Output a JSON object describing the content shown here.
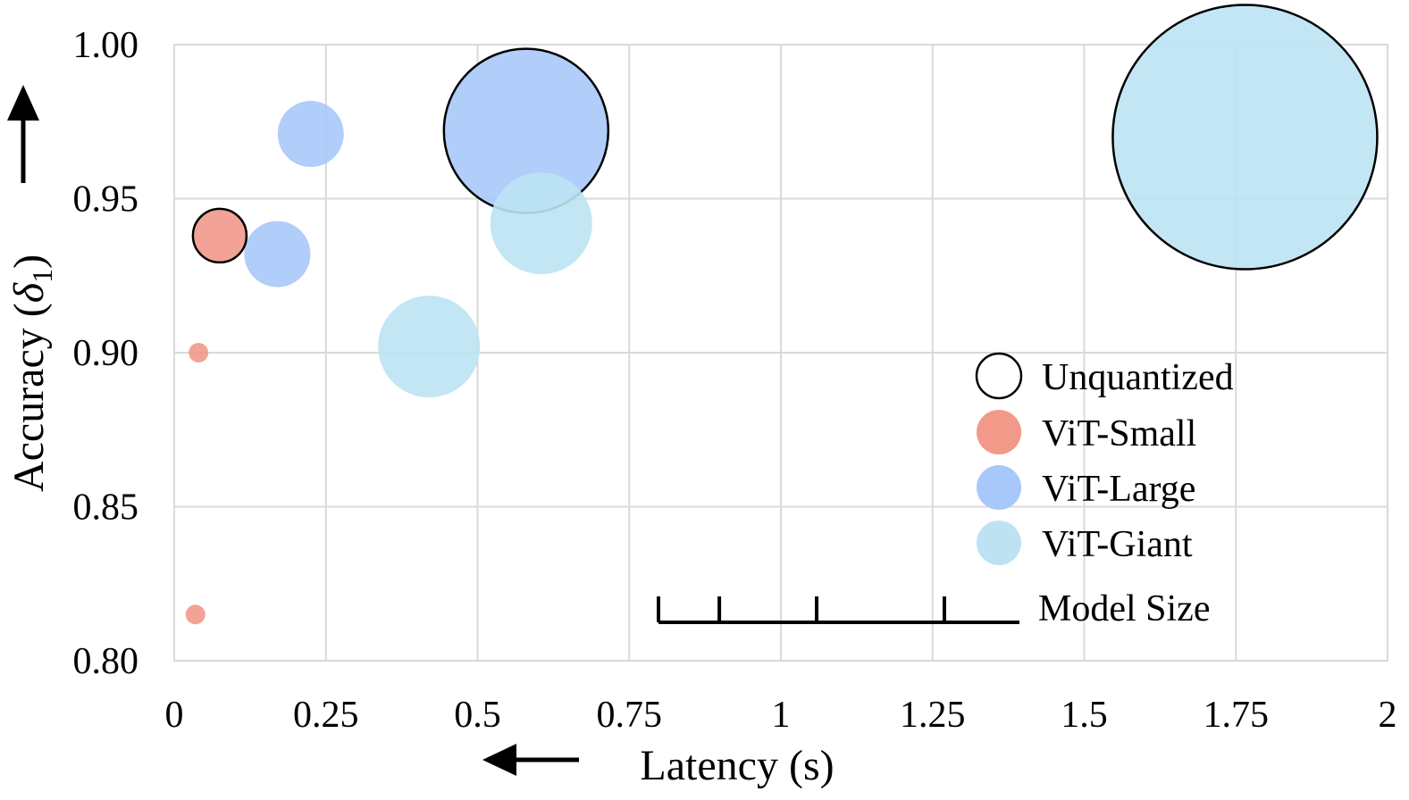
{
  "chart_data": {
    "type": "scatter",
    "subtype": "bubble",
    "title": "",
    "xlabel": "Latency (s)",
    "ylabel_prefix": "Accuracy (",
    "ylabel_symbol": "δ",
    "ylabel_subscript": "1",
    "ylabel_suffix": ")",
    "xlim": [
      0,
      2
    ],
    "ylim": [
      0.8,
      1.0
    ],
    "x_ticks": [
      0,
      0.25,
      0.5,
      0.75,
      1,
      1.25,
      1.5,
      1.75,
      2
    ],
    "x_tick_labels": [
      "0",
      "0.25",
      "0.5",
      "0.75",
      "1",
      "1.25",
      "1.5",
      "1.75",
      "2"
    ],
    "y_ticks": [
      0.8,
      0.85,
      0.9,
      0.95,
      1.0
    ],
    "y_tick_labels": [
      "0.80",
      "0.85",
      "0.90",
      "0.95",
      "1.00"
    ],
    "grid": true,
    "series": [
      {
        "name": "ViT-Small",
        "color": "#f2998a",
        "points": [
          {
            "x": 0.035,
            "y": 0.815,
            "size": 0.11,
            "unquantized": false
          },
          {
            "x": 0.04,
            "y": 0.9,
            "size": 0.11,
            "unquantized": false
          },
          {
            "x": 0.075,
            "y": 0.938,
            "size": 0.3,
            "unquantized": true
          }
        ]
      },
      {
        "name": "ViT-Large",
        "color": "#a8c8fa",
        "points": [
          {
            "x": 0.17,
            "y": 0.932,
            "size": 0.37,
            "unquantized": false
          },
          {
            "x": 0.225,
            "y": 0.971,
            "size": 0.37,
            "unquantized": false
          },
          {
            "x": 0.58,
            "y": 0.972,
            "size": 0.92,
            "unquantized": true
          }
        ]
      },
      {
        "name": "ViT-Giant",
        "color": "#bde3f3",
        "points": [
          {
            "x": 0.42,
            "y": 0.902,
            "size": 0.57,
            "unquantized": false
          },
          {
            "x": 0.605,
            "y": 0.942,
            "size": 0.57,
            "unquantized": false
          },
          {
            "x": 1.765,
            "y": 0.97,
            "size": 1.48,
            "unquantized": true
          }
        ]
      }
    ],
    "legend": {
      "position": "lower-right",
      "items": [
        {
          "label": "Unquantized",
          "style": "outline"
        },
        {
          "label": "ViT-Small",
          "color": "#f2998a"
        },
        {
          "label": "ViT-Large",
          "color": "#a8c8fa"
        },
        {
          "label": "ViT-Giant",
          "color": "#bde3f3"
        }
      ],
      "size_scale_label": "Model Size",
      "size_scale_ticks": [
        0.8,
        0.9,
        1.06,
        1.27
      ]
    }
  }
}
